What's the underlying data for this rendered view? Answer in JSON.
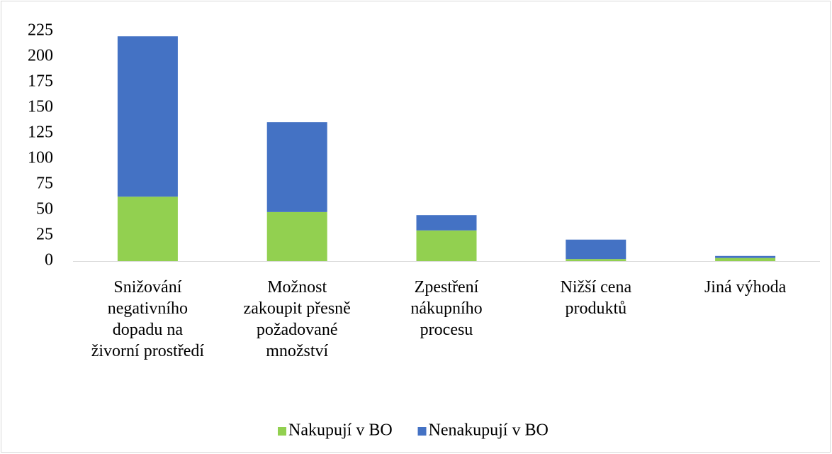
{
  "chart_data": {
    "type": "stacked_bar",
    "categories": [
      "Snižování negativního dopadu na živorní prostředí",
      "Možnost zakoupit přesně požadované množství",
      "Zpestření nákupního procesu",
      "Nižší cena produktů",
      "Jiná výhoda"
    ],
    "series": [
      {
        "name": "Nakupují v BO",
        "color": "#92d050",
        "values": [
          63,
          48,
          30,
          2,
          3
        ]
      },
      {
        "name": "Nenakupují v BO",
        "color": "#4472c4",
        "values": [
          157,
          88,
          15,
          19,
          2
        ]
      }
    ],
    "ylim": [
      0,
      225
    ],
    "yticks": [
      0,
      25,
      50,
      75,
      100,
      125,
      150,
      175,
      200,
      225
    ],
    "grid": false,
    "legend": "bottom"
  }
}
